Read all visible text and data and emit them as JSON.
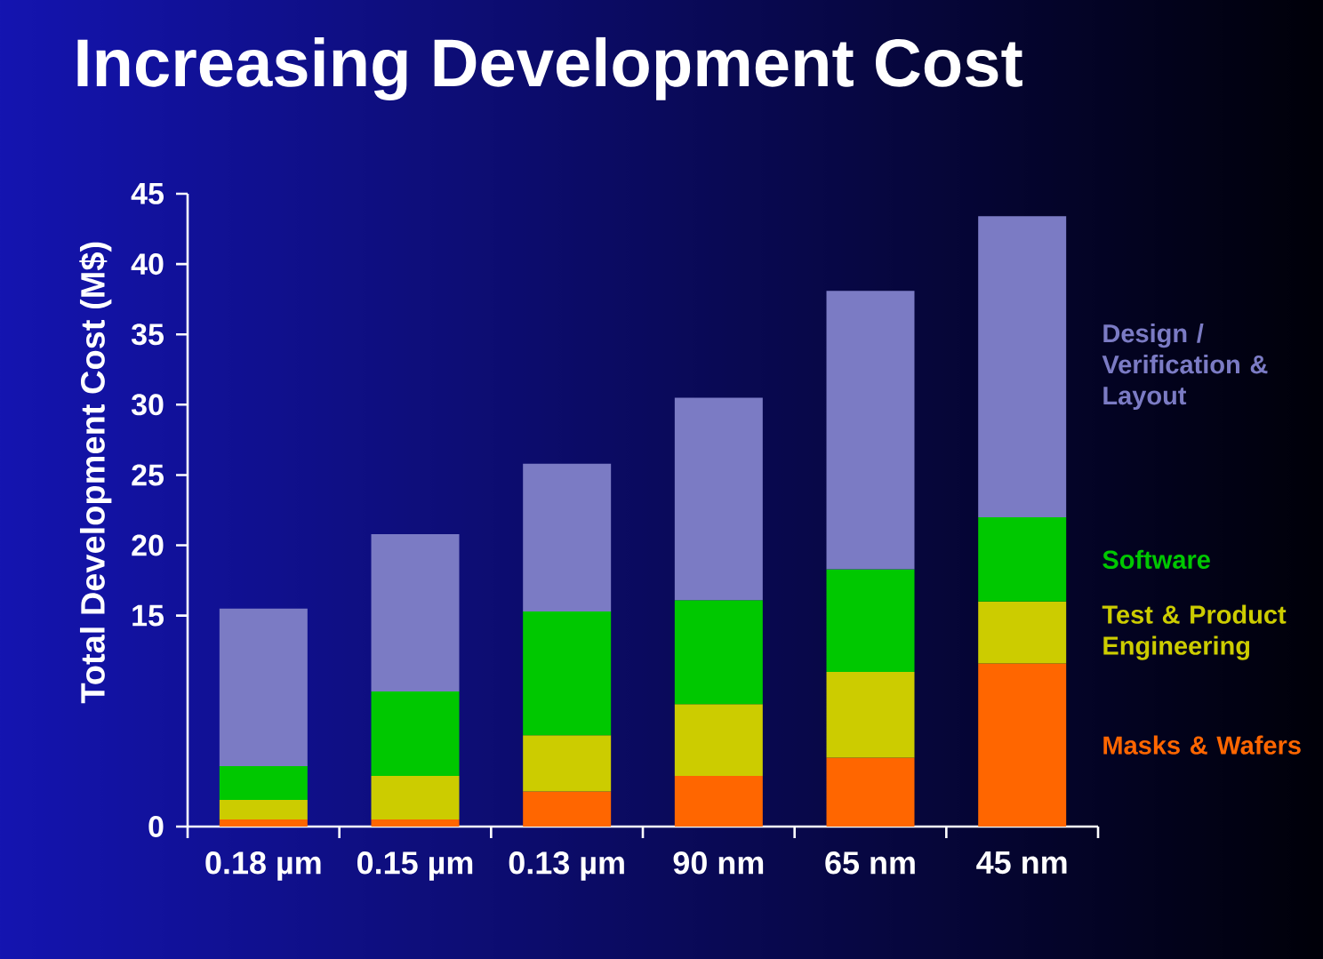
{
  "chart_data": {
    "type": "bar",
    "stacked": true,
    "title": "Increasing Development Cost",
    "ylabel": "Total Development Cost (M$)",
    "categories": [
      "0.18 µm",
      "0.15 µm",
      "0.13 µm",
      "90 nm",
      "65 nm",
      "45 nm"
    ],
    "ylim": [
      0,
      45
    ],
    "yticks": [
      0,
      15,
      20,
      25,
      30,
      35,
      40,
      45
    ],
    "series": [
      {
        "name": "Masks & Wafers",
        "color": "#ff6600",
        "values": [
          0.5,
          0.5,
          2.5,
          3.6,
          4.9,
          11.6
        ]
      },
      {
        "name": "Test & Product Engineering",
        "color": "#cccc00",
        "values": [
          1.4,
          3.1,
          4.0,
          5.1,
          6.1,
          4.4
        ]
      },
      {
        "name": "Software",
        "color": "#00c800",
        "values": [
          2.4,
          6.0,
          8.8,
          7.4,
          7.3,
          6.0
        ]
      },
      {
        "name": "Design / Verification & Layout",
        "color": "#7b7bc4",
        "values": [
          11.2,
          11.2,
          10.5,
          14.4,
          19.8,
          21.4
        ]
      }
    ]
  }
}
